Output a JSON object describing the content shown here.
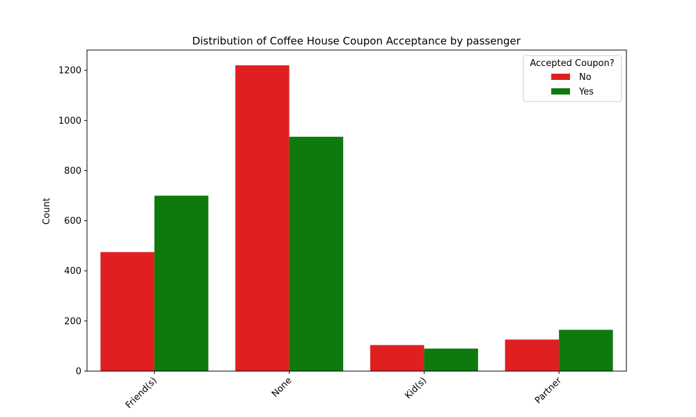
{
  "chart_data": {
    "type": "bar",
    "title": "Distribution of Coffee House Coupon Acceptance by passenger",
    "xlabel": "",
    "ylabel": "Count",
    "categories": [
      "Friend(s)",
      "None",
      "Kid(s)",
      "Partner"
    ],
    "series": [
      {
        "name": "No",
        "color": "#e02020",
        "values": [
          475,
          1220,
          104,
          126
        ]
      },
      {
        "name": "Yes",
        "color": "#0e7a0e",
        "values": [
          700,
          935,
          90,
          165
        ]
      }
    ],
    "ylim": [
      0,
      1281
    ],
    "yticks": [
      0,
      200,
      400,
      600,
      800,
      1000,
      1200
    ],
    "legend": {
      "title": "Accepted Coupon?",
      "placement": "top-right"
    },
    "grid": false
  }
}
